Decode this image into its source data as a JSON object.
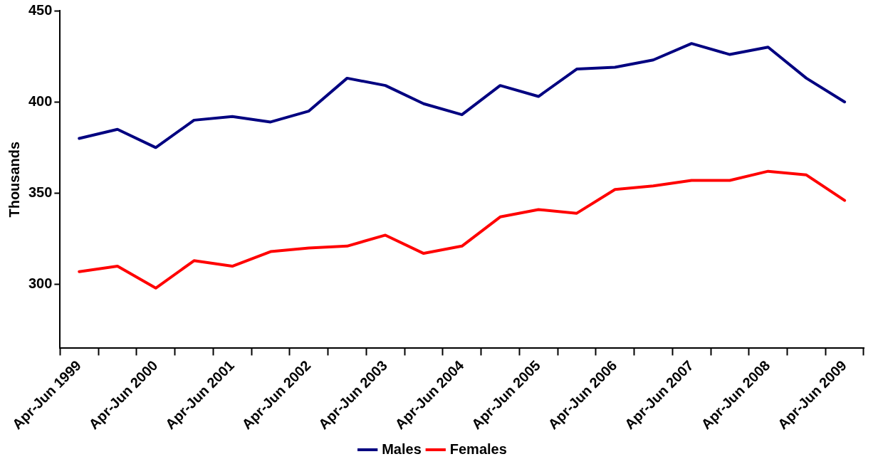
{
  "chart_data": {
    "type": "line",
    "ylabel": "Thousands",
    "categories": [
      "Apr-Jun 1999",
      null,
      "Apr-Jun 2000",
      null,
      "Apr-Jun 2001",
      null,
      "Apr-Jun 2002",
      null,
      "Apr-Jun 2003",
      null,
      "Apr-Jun 2004",
      null,
      "Apr-Jun 2005",
      null,
      "Apr-Jun 2006",
      null,
      "Apr-Jun 2007",
      null,
      "Apr-Jun 2008",
      null,
      "Apr-Jun 2009"
    ],
    "series": [
      {
        "name": "Males",
        "color": "#000080",
        "values": [
          380,
          385,
          375,
          390,
          392,
          389,
          395,
          413,
          409,
          399,
          393,
          409,
          403,
          418,
          419,
          423,
          432,
          426,
          430,
          413,
          400
        ]
      },
      {
        "name": "Females",
        "color": "#ff0000",
        "values": [
          307,
          310,
          298,
          313,
          310,
          318,
          320,
          321,
          327,
          317,
          321,
          337,
          341,
          339,
          352,
          354,
          357,
          357,
          362,
          360,
          346
        ]
      }
    ],
    "ylim": [
      265,
      450
    ],
    "yticks": [
      300,
      350,
      400,
      450
    ],
    "grid": false,
    "legend": "bottom",
    "marker": "none",
    "line_style": "solid"
  }
}
